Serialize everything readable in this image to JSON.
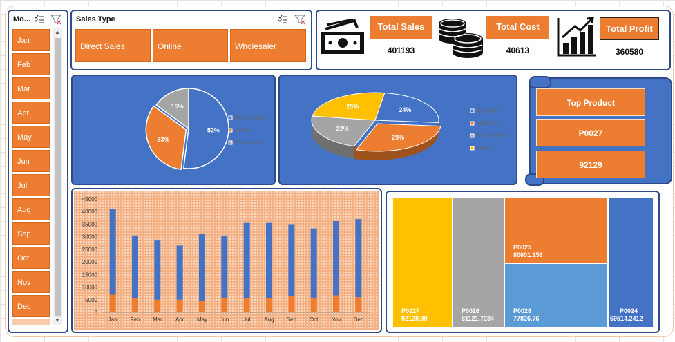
{
  "month_slicer": {
    "title": "Mo...",
    "items": [
      "Jan",
      "Feb",
      "Mar",
      "Apr",
      "May",
      "Jun",
      "Jul",
      "Aug",
      "Sep",
      "Oct",
      "Nov",
      "Dec"
    ]
  },
  "sales_type_slicer": {
    "title": "Sales Type",
    "items": [
      "Direct Sales",
      "Online",
      "Wholesaler"
    ]
  },
  "kpis": {
    "total_sales": {
      "label": "Total Sales",
      "value": "401193",
      "icon": "cash-icon"
    },
    "total_cost": {
      "label": "Total Cost",
      "value": "40613",
      "icon": "coins-icon"
    },
    "total_profit": {
      "label": "Total Profit",
      "value": "360580",
      "icon": "bar-growth-icon"
    }
  },
  "top_product": {
    "title": "Top Product",
    "product": "P0027",
    "value": "92129"
  },
  "colors": {
    "orange": "#ed7d31",
    "blue": "#4472c4",
    "gray": "#a5a5a5",
    "gold": "#ffc000",
    "lightblue": "#5b9bd5",
    "navy": "#2f4a8a"
  },
  "chart_data": [
    {
      "type": "pie",
      "labels": [
        "Direct Sales",
        "Online",
        "Wholesaler"
      ],
      "values": [
        52,
        33,
        15
      ],
      "percent_labels": [
        "52%",
        "33%",
        "15%"
      ],
      "colors": [
        "#4472c4",
        "#ed7d31",
        "#a5a5a5"
      ],
      "legend": "right"
    },
    {
      "type": "pie",
      "labels": [
        "MOHAN",
        "NEERAJ",
        "RAJ KUMAR",
        "RINKU"
      ],
      "values": [
        24,
        29,
        22,
        25
      ],
      "percent_labels": [
        "24%",
        "29%",
        "22%",
        "25%"
      ],
      "colors": [
        "#4472c4",
        "#ed7d31",
        "#a5a5a5",
        "#ffc000"
      ],
      "legend": "right"
    },
    {
      "type": "bar",
      "categories": [
        "Jan",
        "Feb",
        "Mar",
        "Apr",
        "May",
        "Jun",
        "Jul",
        "Aug",
        "Sep",
        "Oct",
        "Nov",
        "Dec"
      ],
      "series": [
        {
          "values": [
            7000,
            5500,
            5000,
            5000,
            4500,
            5800,
            5500,
            5500,
            6500,
            5800,
            6700,
            6000
          ],
          "color": "#ed7d31"
        },
        {
          "values": [
            34000,
            25000,
            23500,
            21500,
            26500,
            24500,
            30000,
            30000,
            28500,
            27500,
            29500,
            31000
          ],
          "color": "#4472c4"
        }
      ],
      "y_ticks": [
        "0",
        "5000",
        "10000",
        "15000",
        "20000",
        "25000",
        "30000",
        "35000",
        "40000",
        "45000"
      ],
      "ylim": [
        0,
        45000
      ],
      "stacked": true,
      "grid": false
    },
    {
      "type": "treemap",
      "items": [
        {
          "name": "P0027",
          "value": "92128.99",
          "color": "#ffc000"
        },
        {
          "name": "P0026",
          "value": "81121.7234",
          "color": "#a5a5a5"
        },
        {
          "name": "P0025",
          "value": "80601.156",
          "color": "#ed7d31"
        },
        {
          "name": "P0028",
          "value": "77826.76",
          "color": "#5b9bd5"
        },
        {
          "name": "P0024",
          "value": "69514.2412",
          "color": "#4472c4"
        }
      ]
    }
  ]
}
